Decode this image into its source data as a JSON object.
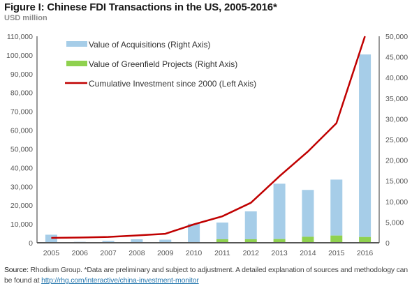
{
  "header": {
    "title": "Figure I: Chinese FDI Transactions in the US, 2005-2016*",
    "subtitle": "USD million"
  },
  "footer": {
    "source_label": "Source:",
    "source_text": " Rhodium Group. *Data are preliminary and subject to adjustment. A detailed explanation of sources and methodology can be found at ",
    "link_text": "http://rhg.com/interactive/china-investment-monitor"
  },
  "colors": {
    "acquisitions": "#a6cde8",
    "greenfield": "#8fd14f",
    "cumulative": "#c00000",
    "axis": "#555555"
  },
  "chart_data": {
    "type": "bar",
    "title": "Figure I: Chinese FDI Transactions in the US, 2005-2016*",
    "subtitle": "USD million",
    "categories": [
      "2005",
      "2006",
      "2007",
      "2008",
      "2009",
      "2010",
      "2011",
      "2012",
      "2013",
      "2014",
      "2015",
      "2016"
    ],
    "series": [
      {
        "name": "Value of Acquisitions (Right Axis)",
        "type": "bar",
        "axis": "right",
        "values": [
          1900,
          200,
          300,
          800,
          600,
          4500,
          4050,
          6750,
          13400,
          11350,
          13550,
          44200
        ]
      },
      {
        "name": "Value of Greenfield Projects (Right Axis)",
        "type": "bar",
        "axis": "right",
        "values": [
          50,
          30,
          150,
          50,
          150,
          100,
          850,
          850,
          900,
          1450,
          1750,
          1400
        ]
      },
      {
        "name": "Cumulative Investment since 2000 (Left Axis)",
        "type": "line",
        "axis": "left",
        "values": [
          2600,
          2800,
          3100,
          3900,
          4800,
          9800,
          14100,
          21300,
          35400,
          48600,
          63700,
          110000
        ]
      }
    ],
    "stacked": true,
    "left_axis": {
      "ylim": [
        0,
        110000
      ],
      "ticks": [
        "0",
        "10,000",
        "20,000",
        "30,000",
        "40,000",
        "50,000",
        "60,000",
        "70,000",
        "80,000",
        "90,000",
        "100,000",
        "110,000"
      ]
    },
    "right_axis": {
      "ylim": [
        0,
        50000
      ],
      "ticks": [
        "0",
        "5,000",
        "10,000",
        "15,000",
        "20,000",
        "25,000",
        "30,000",
        "35,000",
        "40,000",
        "45,000",
        "50,000"
      ]
    },
    "xlabel": "",
    "ylabel": "USD million",
    "grid": false,
    "legend_position": "top-left"
  }
}
